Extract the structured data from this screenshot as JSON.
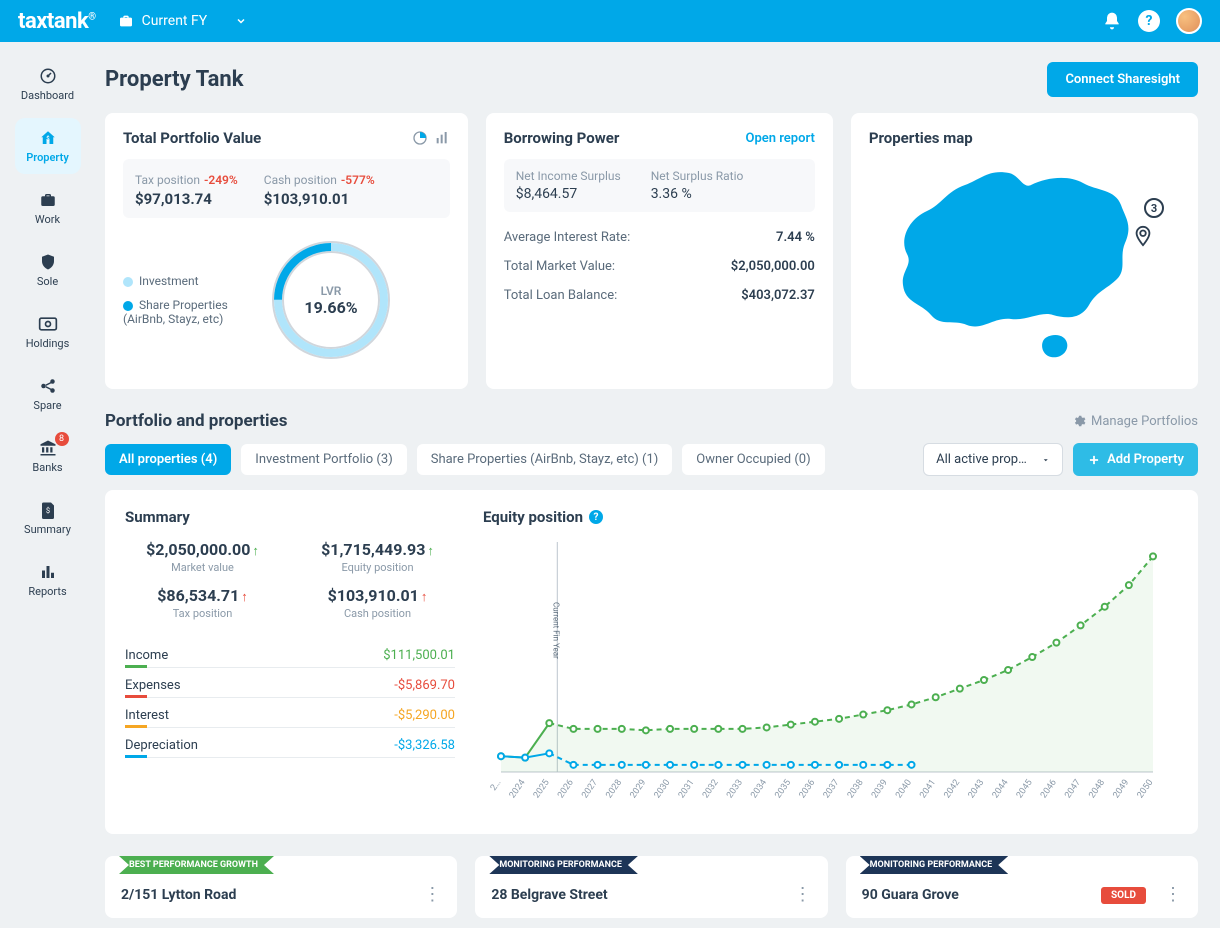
{
  "brand": "taxtank",
  "fy_selector": "Current FY",
  "sidebar": {
    "items": [
      {
        "label": "Dashboard"
      },
      {
        "label": "Property"
      },
      {
        "label": "Work"
      },
      {
        "label": "Sole"
      },
      {
        "label": "Holdings"
      },
      {
        "label": "Spare"
      },
      {
        "label": "Banks",
        "badge": "8"
      },
      {
        "label": "Summary"
      },
      {
        "label": "Reports"
      }
    ]
  },
  "page_title": "Property Tank",
  "connect_btn": "Connect Sharesight",
  "portfolio_value": {
    "title": "Total Portfolio Value",
    "tax_label": "Tax position",
    "tax_pct": "-249%",
    "tax_val": "$97,013.74",
    "cash_label": "Cash position",
    "cash_pct": "-577%",
    "cash_val": "$103,910.01",
    "legend_investment": "Investment",
    "legend_share": "Share Properties (AirBnb, Stayz, etc)",
    "lvr_label": "LVR",
    "lvr_val": "19.66%",
    "donut": {
      "investment_pct": 0.75,
      "share_pct": 0.25,
      "color_investment": "#b0e5fb",
      "color_share": "#00a8e8",
      "track_color": "#e8ecef"
    }
  },
  "borrowing_power": {
    "title": "Borrowing Power",
    "open_label": "Open report",
    "net_income_label": "Net Income Surplus",
    "net_income_val": "$8,464.57",
    "net_ratio_label": "Net Surplus Ratio",
    "net_ratio_val": "3.36 %",
    "rows": [
      {
        "label": "Average Interest Rate:",
        "value": "7.44 %"
      },
      {
        "label": "Total Market Value:",
        "value": "$2,050,000.00"
      },
      {
        "label": "Total Loan Balance:",
        "value": "$403,072.37"
      }
    ]
  },
  "properties_map": {
    "title": "Properties map",
    "count_badge": "3",
    "map_color": "#00a8e8"
  },
  "section_title": "Portfolio and properties",
  "manage_label": "Manage Portfolios",
  "tabs": [
    {
      "label": "All properties (4)"
    },
    {
      "label": "Investment Portfolio (3)"
    },
    {
      "label": "Share Properties (AirBnb, Stayz, etc) (1)"
    },
    {
      "label": "Owner Occupied (0)"
    }
  ],
  "filter_label": "All active proper…",
  "add_property_btn": "Add Property",
  "summary": {
    "title": "Summary",
    "stats": [
      {
        "value": "$2,050,000.00",
        "arrow": "↑",
        "arrow_class": "green",
        "label": "Market value"
      },
      {
        "value": "$1,715,449.93",
        "arrow": "↑",
        "arrow_class": "green",
        "label": "Equity position"
      },
      {
        "value": "$86,534.71",
        "arrow": "↑",
        "arrow_class": "red",
        "label": "Tax position"
      },
      {
        "value": "$103,910.01",
        "arrow": "↑",
        "arrow_class": "red",
        "label": "Cash position"
      }
    ],
    "lines": [
      {
        "label": "Income",
        "value": "$111,500.01",
        "class": "green"
      },
      {
        "label": "Expenses",
        "value": "-$5,869.70",
        "class": "red"
      },
      {
        "label": "Interest",
        "value": "-$5,290.00",
        "class": "orange"
      },
      {
        "label": "Depreciation",
        "value": "-$3,326.58",
        "class": "blue"
      }
    ]
  },
  "equity_chart": {
    "title": "Equity position",
    "vline_label": "Current Fin Year",
    "years": [
      "2…",
      "2024",
      "2025",
      "2026",
      "2027",
      "2028",
      "2029",
      "2030",
      "2031",
      "2032",
      "2033",
      "2034",
      "2035",
      "2036",
      "2037",
      "2038",
      "2039",
      "2040",
      "2041",
      "2042",
      "2043",
      "2044",
      "2045",
      "2046",
      "2047",
      "2048",
      "2049",
      "2050"
    ],
    "green_series": [
      11,
      10,
      34,
      30,
      30,
      30,
      29,
      30,
      30,
      30,
      30,
      31,
      33,
      35,
      37,
      40,
      43,
      47,
      52,
      58,
      64,
      71,
      80,
      90,
      102,
      115,
      130,
      150
    ],
    "blue_series": [
      11,
      10,
      13,
      5,
      5,
      5,
      5,
      5,
      5,
      5,
      5,
      5,
      5,
      5,
      5,
      5,
      5,
      5
    ],
    "colors": {
      "green": "#4caf50",
      "blue": "#00a8e8",
      "grid": "#bcc5ce",
      "axis": "#8a99a8"
    },
    "y_max": 160,
    "marker_radius": 3
  },
  "property_cards": [
    {
      "banner": "BEST PERFORMANCE GROWTH",
      "banner_class": "green",
      "title": "2/151 Lytton Road"
    },
    {
      "banner": "MONITORING PERFORMANCE",
      "banner_class": "navy",
      "title": "28 Belgrave Street"
    },
    {
      "banner": "MONITORING PERFORMANCE",
      "banner_class": "navy",
      "title": "90 Guara Grove",
      "sold": "SOLD"
    }
  ]
}
